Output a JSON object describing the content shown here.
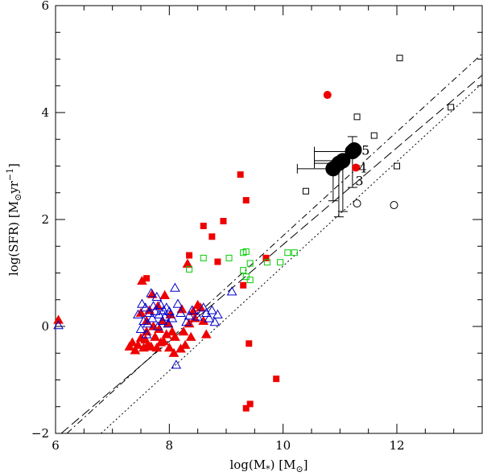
{
  "chart_data": {
    "type": "scatter",
    "xlabel": "log(M",
    "xlabel_sub": "*",
    "xlabel_unit": ") [M",
    "xlabel_unit_sub": "⊙",
    "xlabel_end": "]",
    "ylabel": "log(SFR) [M",
    "ylabel_sub": "⊙",
    "ylabel_unit": "yr",
    "ylabel_sup": "−1",
    "ylabel_end": "]",
    "xlim": [
      6,
      13.5
    ],
    "ylim": [
      -2,
      6
    ],
    "xticks": [
      {
        "value": 6,
        "label": "6"
      },
      {
        "value": 8,
        "label": "8"
      },
      {
        "value": 10,
        "label": "10"
      },
      {
        "value": 12,
        "label": "12"
      }
    ],
    "yticks": [
      {
        "value": -2,
        "label": "−2"
      },
      {
        "value": 0,
        "label": "0"
      },
      {
        "value": 2,
        "label": "2"
      },
      {
        "value": 4,
        "label": "4"
      },
      {
        "value": 6,
        "label": "6"
      }
    ],
    "lines": [
      {
        "name": "dash-dot",
        "dash": "8,4,2,4",
        "points": [
          [
            6.2,
            -2
          ],
          [
            13.5,
            5.1
          ]
        ]
      },
      {
        "name": "long-dash",
        "dash": "12,5",
        "points": [
          [
            6.1,
            -2
          ],
          [
            13.5,
            4.7
          ]
        ]
      },
      {
        "name": "dotted",
        "dash": "2,3",
        "points": [
          [
            6.8,
            -2
          ],
          [
            13.5,
            4.55
          ]
        ]
      }
    ],
    "annotations": [
      {
        "text": "5",
        "x": 11.38,
        "y": 3.3
      },
      {
        "text": "4",
        "x": 11.33,
        "y": 2.97
      },
      {
        "text": "3",
        "x": 11.27,
        "y": 2.73
      }
    ],
    "series": [
      {
        "name": "red filled triangles",
        "marker": "triangle",
        "filled": true,
        "color": "#ee0000",
        "points": [
          [
            6.05,
            0.12
          ],
          [
            7.3,
            -0.38
          ],
          [
            7.35,
            -0.3
          ],
          [
            7.4,
            -0.45
          ],
          [
            7.45,
            -0.35
          ],
          [
            7.5,
            -0.22
          ],
          [
            7.5,
            0.25
          ],
          [
            7.52,
            0.85
          ],
          [
            7.55,
            -0.4
          ],
          [
            7.58,
            -0.25
          ],
          [
            7.6,
            0.1
          ],
          [
            7.6,
            -0.1
          ],
          [
            7.62,
            -0.35
          ],
          [
            7.65,
            0.3
          ],
          [
            7.68,
            -0.38
          ],
          [
            7.7,
            0.6
          ],
          [
            7.72,
            0.0
          ],
          [
            7.75,
            -0.2
          ],
          [
            7.78,
            -0.4
          ],
          [
            7.8,
            0.38
          ],
          [
            7.82,
            -0.05
          ],
          [
            7.85,
            -0.3
          ],
          [
            7.88,
            0.1
          ],
          [
            7.9,
            -0.28
          ],
          [
            7.92,
            0.58
          ],
          [
            7.95,
            -0.15
          ],
          [
            7.98,
            0.05
          ],
          [
            8.0,
            -0.4
          ],
          [
            8.02,
            0.22
          ],
          [
            8.05,
            -0.1
          ],
          [
            8.08,
            -0.5
          ],
          [
            8.1,
            -0.2
          ],
          [
            8.2,
            -0.42
          ],
          [
            8.22,
            0.32
          ],
          [
            8.25,
            -0.1
          ],
          [
            8.28,
            -0.35
          ],
          [
            8.32,
            1.17
          ],
          [
            8.35,
            0.05
          ],
          [
            8.38,
            -0.2
          ],
          [
            8.42,
            0.28
          ],
          [
            8.45,
            0.15
          ],
          [
            8.5,
            0.4
          ],
          [
            8.55,
            0.35
          ],
          [
            8.6,
            0.1
          ],
          [
            8.65,
            -0.15
          ]
        ]
      },
      {
        "name": "blue open triangles",
        "marker": "triangle",
        "filled": false,
        "color": "#0000cc",
        "points": [
          [
            6.05,
            0.02
          ],
          [
            7.45,
            0.22
          ],
          [
            7.5,
            -0.05
          ],
          [
            7.52,
            0.42
          ],
          [
            7.55,
            0.1
          ],
          [
            7.58,
            0.35
          ],
          [
            7.6,
            -0.15
          ],
          [
            7.62,
            0.05
          ],
          [
            7.65,
            0.25
          ],
          [
            7.68,
            0.62
          ],
          [
            7.7,
            0.15
          ],
          [
            7.72,
            0.38
          ],
          [
            7.75,
            0.28
          ],
          [
            7.78,
            0.55
          ],
          [
            7.8,
            0.0
          ],
          [
            7.82,
            0.22
          ],
          [
            7.85,
            0.4
          ],
          [
            7.88,
            0.1
          ],
          [
            7.9,
            0.3
          ],
          [
            7.92,
            0.18
          ],
          [
            7.95,
            0.35
          ],
          [
            7.98,
            0.05
          ],
          [
            8.0,
            0.28
          ],
          [
            8.05,
            0.15
          ],
          [
            8.1,
            0.72
          ],
          [
            8.12,
            -0.72
          ],
          [
            8.15,
            0.42
          ],
          [
            8.2,
            0.25
          ],
          [
            8.3,
            0.08
          ],
          [
            8.35,
            0.2
          ],
          [
            8.4,
            0.3
          ],
          [
            8.5,
            0.18
          ],
          [
            8.6,
            0.35
          ],
          [
            8.65,
            0.25
          ],
          [
            8.7,
            0.15
          ],
          [
            8.75,
            0.3
          ],
          [
            8.8,
            0.08
          ],
          [
            8.85,
            0.22
          ],
          [
            9.1,
            0.65
          ]
        ]
      },
      {
        "name": "red filled squares",
        "marker": "square",
        "filled": true,
        "color": "#ee0000",
        "points": [
          [
            7.6,
            0.9
          ],
          [
            8.35,
            1.33
          ],
          [
            8.6,
            1.88
          ],
          [
            8.75,
            1.68
          ],
          [
            8.85,
            1.21
          ],
          [
            8.95,
            1.97
          ],
          [
            9.25,
            2.84
          ],
          [
            9.35,
            2.36
          ],
          [
            9.3,
            0.77
          ],
          [
            9.4,
            -0.32
          ],
          [
            9.35,
            -1.53
          ],
          [
            9.42,
            -1.45
          ],
          [
            9.7,
            1.28
          ],
          [
            9.88,
            -0.98
          ]
        ]
      },
      {
        "name": "green open squares",
        "marker": "square",
        "filled": false,
        "color": "#00cc00",
        "points": [
          [
            8.35,
            1.07
          ],
          [
            8.6,
            1.28
          ],
          [
            9.05,
            1.28
          ],
          [
            9.3,
            1.38
          ],
          [
            9.35,
            1.4
          ],
          [
            9.3,
            1.05
          ],
          [
            9.42,
            1.18
          ],
          [
            9.35,
            0.93
          ],
          [
            9.42,
            0.87
          ],
          [
            9.72,
            1.2
          ],
          [
            9.95,
            1.2
          ],
          [
            10.08,
            1.38
          ],
          [
            10.2,
            1.38
          ]
        ]
      },
      {
        "name": "black open squares",
        "marker": "square",
        "filled": false,
        "color": "#000000",
        "points": [
          [
            10.4,
            2.53
          ],
          [
            11.3,
            3.92
          ],
          [
            11.6,
            3.57
          ],
          [
            12.0,
            3.0
          ],
          [
            12.05,
            5.02
          ],
          [
            12.95,
            4.1
          ]
        ]
      },
      {
        "name": "black open circles",
        "marker": "circle",
        "filled": false,
        "color": "#000000",
        "points": [
          [
            11.3,
            2.3
          ],
          [
            11.95,
            2.27
          ]
        ]
      },
      {
        "name": "red filled circles",
        "marker": "circle-small",
        "filled": true,
        "color": "#ee0000",
        "points": [
          [
            10.78,
            4.33
          ],
          [
            11.28,
            2.97
          ]
        ]
      },
      {
        "name": "black filled circles",
        "marker": "circle-large",
        "filled": true,
        "color": "#000000",
        "points": [
          [
            10.88,
            2.95
          ],
          [
            10.98,
            3.05
          ],
          [
            11.05,
            3.1
          ],
          [
            11.22,
            3.27
          ],
          [
            11.25,
            3.3
          ]
        ]
      }
    ],
    "error_bars": [
      {
        "x": 10.88,
        "y": 2.95,
        "xlo": 10.25,
        "ylo": 2.35
      },
      {
        "x": 10.98,
        "y": 3.05,
        "xlo": 10.55,
        "ylo": 2.05
      },
      {
        "x": 11.05,
        "y": 3.1,
        "xlo": 10.55,
        "ylo": 2.15
      },
      {
        "x": 11.22,
        "y": 3.27,
        "xlo": 10.55,
        "yhi": 3.55,
        "ylo": 2.6
      }
    ]
  }
}
